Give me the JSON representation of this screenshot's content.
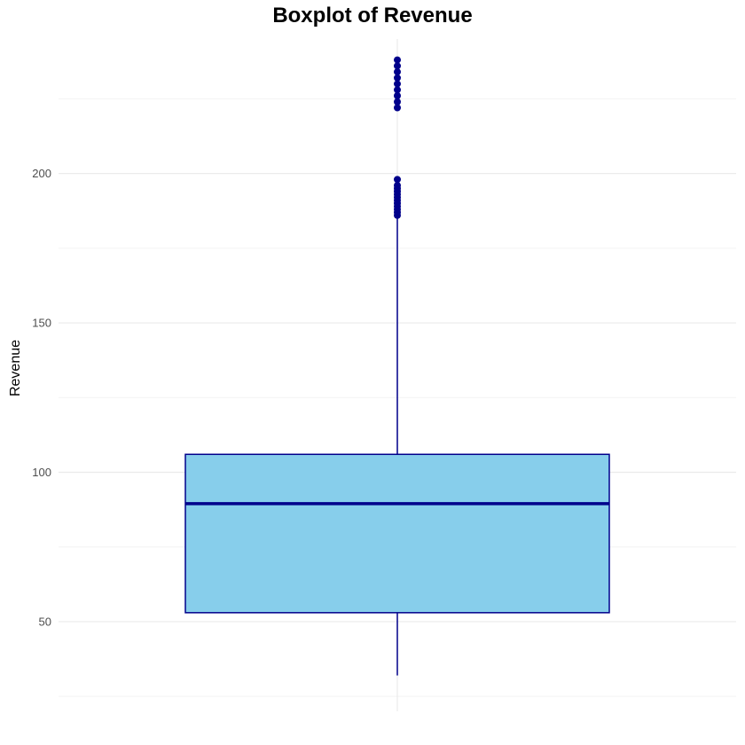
{
  "chart_data": {
    "type": "boxplot",
    "title": "Boxplot of Revenue",
    "xlabel": "",
    "ylabel": "Revenue",
    "ylim": [
      20,
      245
    ],
    "y_ticks": [
      50,
      100,
      150,
      200
    ],
    "grid": true,
    "box": {
      "lower_whisker": 32,
      "q1": 53,
      "median": 89.5,
      "q3": 106,
      "upper_whisker": 185,
      "outliers": [
        186,
        187,
        188,
        189,
        190,
        191,
        192,
        193,
        194,
        195,
        196,
        198,
        222,
        224,
        226,
        228,
        230,
        232,
        234,
        236,
        238
      ]
    },
    "colors": {
      "box_fill": "#87CEEB",
      "box_line": "#00008B",
      "outlier": "#00008B",
      "grid_major": "#ebebeb",
      "grid_minor": "#f3f3f3"
    }
  }
}
